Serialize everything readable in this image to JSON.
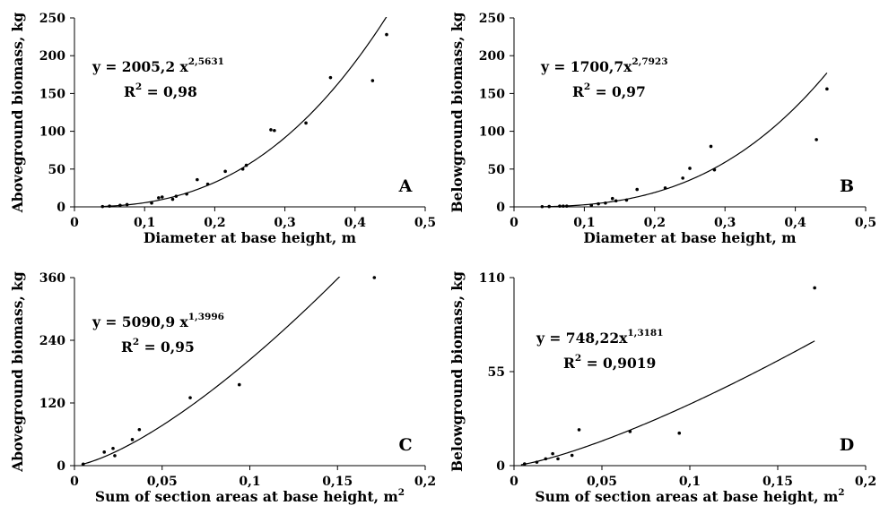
{
  "charts": [
    {
      "id": "A",
      "chart_data": {
        "type": "scatter",
        "panel_label": "A",
        "xlabel": "Diameter at base height, m",
        "ylabel": "Aboveground biomass, kg",
        "xlim": [
          0,
          0.5
        ],
        "ylim": [
          0,
          250
        ],
        "xticks": [
          0,
          0.1,
          0.2,
          0.3,
          0.4,
          0.5
        ],
        "yticks": [
          0,
          50,
          100,
          150,
          200,
          250
        ],
        "xtick_labels": [
          "0",
          "0,1",
          "0,2",
          "0,3",
          "0,4",
          "0,5"
        ],
        "ytick_labels": [
          "0",
          "50",
          "100",
          "150",
          "200",
          "250"
        ],
        "equation": "y = 2005,2 x",
        "equation_exponent": "2,5631",
        "r2_prefix": "R",
        "r2_sup": "2",
        "r2_value": " = 0,98",
        "fit": {
          "model": "power",
          "a": 2005.2,
          "b": 2.5631,
          "x_from": 0.04,
          "x_to": 0.5
        },
        "points": [
          [
            0.04,
            0.4
          ],
          [
            0.05,
            1
          ],
          [
            0.065,
            2
          ],
          [
            0.075,
            3
          ],
          [
            0.11,
            5
          ],
          [
            0.12,
            12
          ],
          [
            0.125,
            13
          ],
          [
            0.14,
            10
          ],
          [
            0.145,
            14
          ],
          [
            0.16,
            17
          ],
          [
            0.175,
            36
          ],
          [
            0.19,
            30
          ],
          [
            0.215,
            47
          ],
          [
            0.24,
            50
          ],
          [
            0.245,
            55
          ],
          [
            0.28,
            102
          ],
          [
            0.285,
            101
          ],
          [
            0.33,
            111
          ],
          [
            0.365,
            171
          ],
          [
            0.425,
            167
          ],
          [
            0.445,
            228
          ]
        ]
      }
    },
    {
      "id": "B",
      "chart_data": {
        "type": "scatter",
        "panel_label": "B",
        "xlabel": "Diameter at base height, m",
        "ylabel": "Belowground biomass, kg",
        "xlim": [
          0,
          0.5
        ],
        "ylim": [
          0,
          250
        ],
        "xticks": [
          0,
          0.1,
          0.2,
          0.3,
          0.4,
          0.5
        ],
        "yticks": [
          0,
          50,
          100,
          150,
          200,
          250
        ],
        "xtick_labels": [
          "0",
          "0,1",
          "0,2",
          "0,3",
          "0,4",
          "0,5"
        ],
        "ytick_labels": [
          "0",
          "50",
          "100",
          "150",
          "200",
          "250"
        ],
        "equation": "y = 1700,7x",
        "equation_exponent": "2,7923",
        "r2_prefix": "R",
        "r2_sup": "2",
        "r2_value": " = 0,97",
        "fit": {
          "model": "power",
          "a": 1700.7,
          "b": 2.7923,
          "x_from": 0.04,
          "x_to": 0.445
        },
        "points": [
          [
            0.04,
            0.3
          ],
          [
            0.05,
            0.5
          ],
          [
            0.065,
            1
          ],
          [
            0.07,
            1
          ],
          [
            0.075,
            1
          ],
          [
            0.11,
            2
          ],
          [
            0.12,
            4
          ],
          [
            0.13,
            5
          ],
          [
            0.14,
            11
          ],
          [
            0.145,
            8
          ],
          [
            0.16,
            9
          ],
          [
            0.175,
            23
          ],
          [
            0.215,
            25
          ],
          [
            0.24,
            38
          ],
          [
            0.25,
            51
          ],
          [
            0.28,
            80
          ],
          [
            0.285,
            49
          ],
          [
            0.43,
            89
          ],
          [
            0.445,
            156
          ]
        ]
      }
    },
    {
      "id": "C",
      "chart_data": {
        "type": "scatter",
        "panel_label": "C",
        "xlabel": "Sum of section areas at base height, m",
        "xlabel_sup": "2",
        "ylabel": "Aboveground biomass, kg",
        "xlim": [
          0,
          0.2
        ],
        "ylim": [
          0,
          360
        ],
        "xticks": [
          0,
          0.05,
          0.1,
          0.15,
          0.2
        ],
        "yticks": [
          0,
          120,
          240,
          360
        ],
        "xtick_labels": [
          "0",
          "0,05",
          "0,1",
          "0,15",
          "0,2"
        ],
        "ytick_labels": [
          "0",
          "120",
          "240",
          "360"
        ],
        "equation": "y = 5090,9 x",
        "equation_exponent": "1,3996",
        "r2_prefix": "R",
        "r2_sup": "2",
        "r2_value": " = 0,95",
        "fit": {
          "model": "power",
          "a": 5090.9,
          "b": 1.3996,
          "x_from": 0.004,
          "x_to": 0.2
        },
        "points": [
          [
            0.005,
            3
          ],
          [
            0.017,
            26
          ],
          [
            0.022,
            33
          ],
          [
            0.023,
            19
          ],
          [
            0.033,
            50
          ],
          [
            0.037,
            69
          ],
          [
            0.066,
            130
          ],
          [
            0.094,
            155
          ],
          [
            0.171,
            360
          ]
        ]
      }
    },
    {
      "id": "D",
      "chart_data": {
        "type": "scatter",
        "panel_label": "D",
        "xlabel": "Sum of section areas at base height, m",
        "xlabel_sup": "2",
        "ylabel": "Belowground biomass, kg",
        "xlim": [
          0,
          0.2
        ],
        "ylim": [
          0,
          110
        ],
        "xticks": [
          0,
          0.05,
          0.1,
          0.15,
          0.2
        ],
        "yticks": [
          0,
          55,
          110
        ],
        "xtick_labels": [
          "0",
          "0,05",
          "0,1",
          "0,15",
          "0,2"
        ],
        "ytick_labels": [
          "0",
          "55",
          "110"
        ],
        "equation": "y = 748,22x",
        "equation_exponent": "1,3181",
        "r2_prefix": "R",
        "r2_sup": "2",
        "r2_value": " = 0,9019",
        "fit": {
          "model": "power",
          "a": 748.22,
          "b": 1.3181,
          "x_from": 0.004,
          "x_to": 0.171
        },
        "points": [
          [
            0.006,
            1
          ],
          [
            0.013,
            2
          ],
          [
            0.018,
            4
          ],
          [
            0.022,
            7
          ],
          [
            0.025,
            4
          ],
          [
            0.033,
            6
          ],
          [
            0.037,
            21
          ],
          [
            0.066,
            20
          ],
          [
            0.094,
            19
          ],
          [
            0.171,
            104
          ]
        ]
      }
    }
  ]
}
